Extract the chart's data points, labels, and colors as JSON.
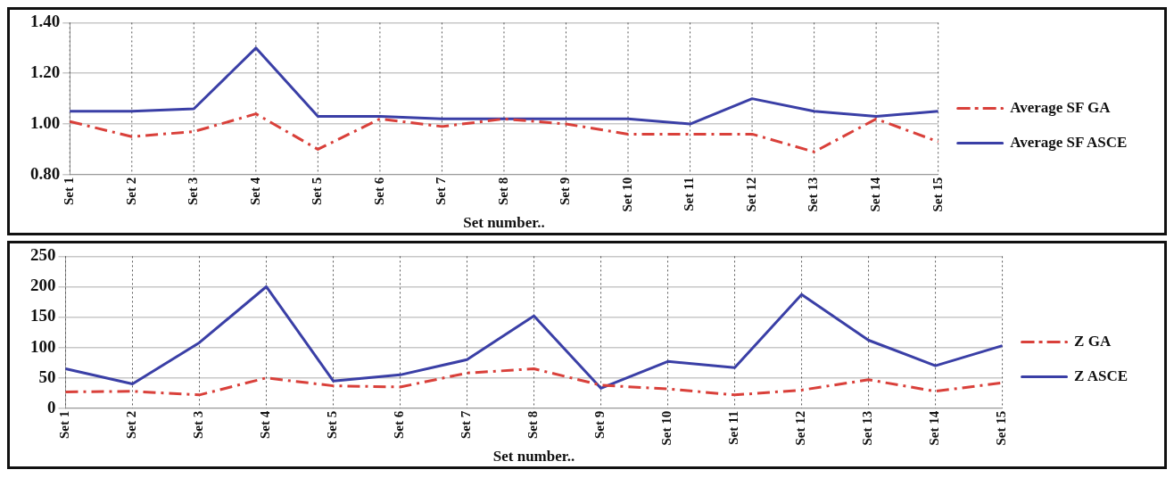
{
  "chart_data": [
    {
      "type": "line",
      "xlabel": "Set number..",
      "categories": [
        "Set 1",
        "Set 2",
        "Set 3",
        "Set 4",
        "Set 5",
        "Set 6",
        "Set 7",
        "Set 8",
        "Set 9",
        "Set 10",
        "Set 11",
        "Set 12",
        "Set 13",
        "Set 14",
        "Set 15"
      ],
      "series": [
        {
          "name": "Average SF GA",
          "color": "#d9403a",
          "line_style": "dashed",
          "values": [
            1.01,
            0.95,
            0.97,
            1.04,
            0.9,
            1.02,
            0.99,
            1.02,
            1.0,
            0.96,
            0.96,
            0.96,
            0.89,
            1.02,
            0.93
          ]
        },
        {
          "name": "Average SF ASCE",
          "color": "#3a3fa6",
          "line_style": "solid",
          "values": [
            1.05,
            1.05,
            1.06,
            1.3,
            1.03,
            1.03,
            1.02,
            1.02,
            1.02,
            1.02,
            1.0,
            1.1,
            1.05,
            1.03,
            1.05
          ]
        }
      ],
      "ylim": [
        0.8,
        1.4
      ],
      "yticks": [
        {
          "value": 0.8,
          "label": "0.80"
        },
        {
          "value": 1.0,
          "label": "1.00"
        },
        {
          "value": 1.2,
          "label": "1.20"
        },
        {
          "value": 1.4,
          "label": "1.40"
        }
      ],
      "grid": true,
      "legend": "right",
      "marker": "none"
    },
    {
      "type": "line",
      "xlabel": "Set number..",
      "categories": [
        "Set 1",
        "Set 2",
        "Set 3",
        "Set 4",
        "Set 5",
        "Set 6",
        "Set 7",
        "Set 8",
        "Set 9",
        "Set 10",
        "Set 11",
        "Set 12",
        "Set 13",
        "Set 14",
        "Set 15"
      ],
      "series": [
        {
          "name": "Z GA",
          "color": "#d9403a",
          "line_style": "dashed",
          "values": [
            27,
            28,
            22,
            50,
            37,
            35,
            58,
            65,
            38,
            32,
            22,
            30,
            47,
            28,
            42
          ]
        },
        {
          "name": "Z ASCE",
          "color": "#3a3fa6",
          "line_style": "solid",
          "values": [
            65,
            40,
            108,
            200,
            45,
            55,
            80,
            152,
            33,
            77,
            67,
            187,
            112,
            70,
            103
          ]
        }
      ],
      "ylim": [
        0,
        250
      ],
      "yticks": [
        0,
        50,
        100,
        150,
        200,
        250
      ],
      "grid": true,
      "legend": "right",
      "marker": "none"
    }
  ]
}
